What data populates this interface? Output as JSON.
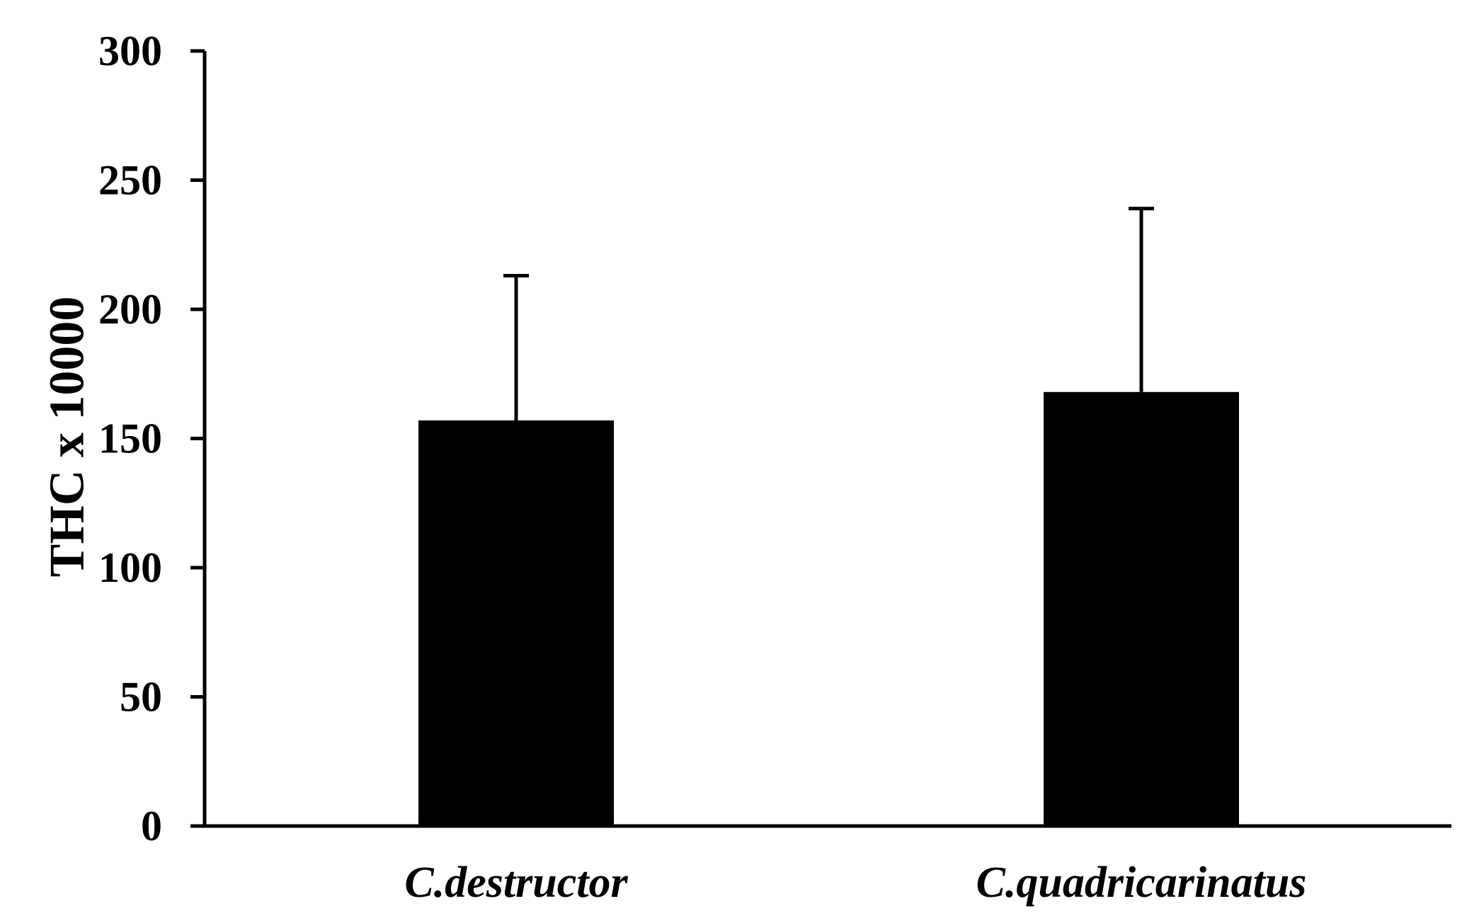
{
  "chart_data": {
    "type": "bar",
    "title": "",
    "xlabel": "",
    "ylabel": "THC x 10000",
    "categories": [
      "C.destructor",
      "C.quadricarinatus"
    ],
    "values": [
      157,
      168
    ],
    "error_bars": [
      56,
      71
    ],
    "ylim": [
      0,
      300
    ],
    "yticks": [
      "0",
      "50",
      "100",
      "150",
      "200",
      "250",
      "300"
    ],
    "grid": false,
    "legend": "none",
    "bar_color": "#000000",
    "axis_color": "#000000"
  }
}
